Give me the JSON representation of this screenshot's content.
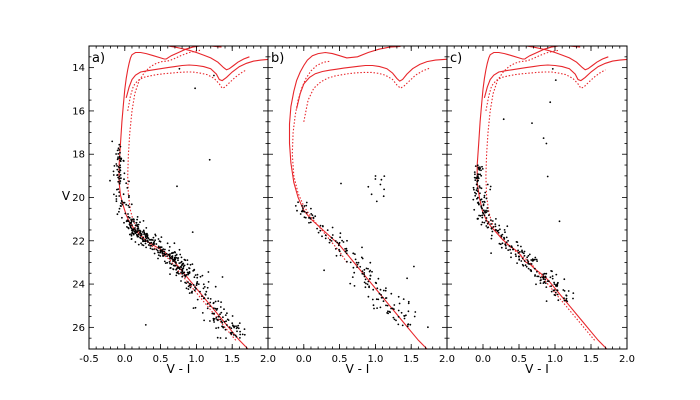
{
  "chart_data": [
    {
      "type": "scatter",
      "panel_label": "a)",
      "xlabel": "V - I",
      "ylabel": "V",
      "xlim": [
        -0.5,
        2.0
      ],
      "ylim": [
        27,
        13
      ],
      "y_inverted": true,
      "x_ticks": [
        -0.5,
        0.0,
        0.5,
        1.0,
        1.5,
        2.0
      ],
      "x_tick_labels": [
        "-0.5",
        "0.0",
        "0.5",
        "1.0",
        "1.5",
        "2.0"
      ],
      "y_ticks": [
        14,
        16,
        18,
        20,
        22,
        24,
        26
      ],
      "y_tick_labels": [
        "14",
        "16",
        "18",
        "20",
        "22",
        "24",
        "26"
      ],
      "scatter_color": "#000000",
      "isochrone_color": "#e8262b",
      "isochrones": [
        {
          "style": "solid",
          "x": [
            1.72,
            1.6,
            1.5,
            1.4,
            1.3,
            1.2,
            1.1,
            1.0,
            0.9,
            0.8,
            0.7,
            0.62,
            0.55,
            0.5,
            0.45,
            0.4,
            0.3,
            0.2,
            0.12,
            0.06,
            0.02,
            -0.02,
            -0.06,
            -0.08,
            -0.08,
            -0.06,
            -0.04,
            -0.02,
            0.0,
            0.02,
            0.04,
            0.06,
            0.08,
            0.1,
            0.15,
            0.22,
            0.3,
            0.4,
            0.5,
            0.55,
            0.58,
            0.6,
            0.65,
            0.75,
            0.85,
            0.95,
            1.05,
            1.2,
            1.35
          ],
          "y": [
            27.0,
            26.6,
            26.2,
            25.8,
            25.4,
            25.0,
            24.6,
            24.2,
            23.8,
            23.4,
            23.0,
            22.7,
            22.5,
            22.4,
            22.3,
            22.2,
            22.0,
            21.7,
            21.4,
            21.1,
            20.8,
            20.4,
            19.9,
            19.3,
            18.5,
            17.5,
            16.5,
            15.7,
            15.0,
            14.5,
            14.1,
            13.8,
            13.55,
            13.4,
            13.3,
            13.3,
            13.35,
            13.45,
            13.55,
            13.6,
            13.6,
            13.55,
            13.45,
            13.3,
            13.15,
            13.05,
            13.0,
            13.0,
            13.05
          ]
        },
        {
          "style": "dotted",
          "x": [
            1.55,
            1.45,
            1.35,
            1.25,
            1.15,
            1.05,
            0.95,
            0.85,
            0.75,
            0.68,
            0.62,
            0.56,
            0.5,
            0.4,
            0.3,
            0.2,
            0.12,
            0.08,
            0.05,
            0.04,
            0.05,
            0.07,
            0.1,
            0.14,
            0.2,
            0.28,
            0.36,
            0.44,
            0.52,
            0.58,
            0.62,
            0.68,
            0.78,
            0.9,
            1.05
          ],
          "y": [
            26.6,
            26.2,
            25.8,
            25.4,
            25.0,
            24.6,
            24.2,
            23.8,
            23.4,
            23.1,
            22.85,
            22.7,
            22.55,
            22.3,
            22.0,
            21.6,
            21.1,
            20.6,
            19.9,
            19.0,
            18.0,
            17.0,
            16.0,
            15.2,
            14.6,
            14.2,
            13.95,
            13.8,
            13.72,
            13.7,
            13.68,
            13.6,
            13.45,
            13.3,
            13.2
          ]
        },
        {
          "style": "solid",
          "x": [
            0.02,
            0.06,
            0.1,
            0.15,
            0.22,
            0.3,
            0.4,
            0.5,
            0.6,
            0.7,
            0.8,
            0.9,
            1.0,
            1.1,
            1.2,
            1.28,
            1.32,
            1.36,
            1.42,
            1.5,
            1.6,
            1.7,
            1.8,
            1.9,
            2.0
          ],
          "y": [
            15.4,
            14.9,
            14.55,
            14.35,
            14.2,
            14.15,
            14.1,
            14.05,
            14.0,
            13.95,
            13.9,
            13.88,
            13.9,
            13.95,
            14.05,
            14.3,
            14.55,
            14.6,
            14.45,
            14.2,
            13.95,
            13.8,
            13.7,
            13.65,
            13.62
          ]
        },
        {
          "style": "dotted",
          "x": [
            0.04,
            0.08,
            0.12,
            0.18,
            0.26,
            0.35,
            0.45,
            0.55,
            0.65,
            0.75,
            0.85,
            0.95,
            1.05,
            1.15,
            1.25,
            1.32,
            1.36,
            1.4,
            1.46,
            1.54,
            1.62,
            1.7
          ],
          "y": [
            16.0,
            15.3,
            14.85,
            14.6,
            14.45,
            14.38,
            14.32,
            14.28,
            14.25,
            14.22,
            14.2,
            14.2,
            14.25,
            14.32,
            14.5,
            14.75,
            14.95,
            14.9,
            14.7,
            14.45,
            14.25,
            14.1
          ]
        },
        {
          "style": "solid",
          "x": [
            0.6,
            0.7,
            0.8,
            0.9,
            1.0,
            1.1,
            1.2,
            1.3,
            1.38,
            1.42,
            1.46,
            1.52,
            1.58,
            1.66,
            1.74
          ],
          "y": [
            13.0,
            13.05,
            13.12,
            13.2,
            13.3,
            13.42,
            13.55,
            13.75,
            14.0,
            14.1,
            14.05,
            13.9,
            13.75,
            13.6,
            13.5
          ]
        }
      ],
      "points_seed": 11,
      "points_count": 520
    },
    {
      "type": "scatter",
      "panel_label": "b)",
      "xlabel": "V - I",
      "ylabel": "",
      "xlim": [
        -0.5,
        2.0
      ],
      "ylim": [
        27,
        13
      ],
      "y_inverted": true,
      "x_ticks": [
        -0.5,
        0.0,
        0.5,
        1.0,
        1.5,
        2.0
      ],
      "x_tick_labels": [
        "",
        "0.0",
        "0.5",
        "1.0",
        "1.5",
        "2.0"
      ],
      "scatter_color": "#000000",
      "isochrone_color": "#e8262b",
      "isochrones": [
        {
          "style": "solid",
          "x": [
            1.72,
            1.6,
            1.5,
            1.4,
            1.3,
            1.2,
            1.1,
            1.0,
            0.9,
            0.8,
            0.7,
            0.6,
            0.5,
            0.4,
            0.3,
            0.2,
            0.1,
            0.0,
            -0.08,
            -0.14,
            -0.18,
            -0.2,
            -0.2,
            -0.18,
            -0.14,
            -0.1,
            -0.05,
            0.0,
            0.05,
            0.12,
            0.2,
            0.3,
            0.4,
            0.5,
            0.6,
            0.75,
            0.9,
            1.05,
            1.2,
            1.35
          ],
          "y": [
            27.0,
            26.6,
            26.2,
            25.8,
            25.4,
            25.0,
            24.6,
            24.2,
            23.8,
            23.4,
            23.0,
            22.6,
            22.2,
            21.9,
            21.6,
            21.3,
            21.0,
            20.6,
            20.0,
            19.3,
            18.4,
            17.5,
            16.6,
            15.8,
            15.1,
            14.6,
            14.2,
            13.9,
            13.65,
            13.45,
            13.35,
            13.3,
            13.35,
            13.45,
            13.55,
            13.5,
            13.3,
            13.15,
            13.05,
            13.02
          ]
        },
        {
          "style": "dotted",
          "x": [
            0.6,
            0.5,
            0.4,
            0.3,
            0.2,
            0.1,
            0.0,
            -0.08,
            -0.14,
            -0.16,
            -0.15,
            -0.12,
            -0.08,
            -0.03,
            0.03,
            0.1,
            0.18,
            0.28,
            0.38
          ],
          "y": [
            23.0,
            22.5,
            22.1,
            21.7,
            21.3,
            20.9,
            20.4,
            19.8,
            19.0,
            18.0,
            17.0,
            16.2,
            15.5,
            14.95,
            14.5,
            14.15,
            13.9,
            13.75,
            13.7
          ]
        },
        {
          "style": "solid",
          "x": [
            -0.1,
            -0.05,
            0.0,
            0.08,
            0.16,
            0.26,
            0.36,
            0.46,
            0.56,
            0.66,
            0.76,
            0.86,
            0.96,
            1.06,
            1.16,
            1.24,
            1.3,
            1.34,
            1.38,
            1.44,
            1.52,
            1.62,
            1.72,
            1.84,
            1.96,
            2.0
          ],
          "y": [
            15.9,
            15.2,
            14.75,
            14.45,
            14.28,
            14.18,
            14.12,
            14.07,
            14.02,
            13.98,
            13.94,
            13.9,
            13.9,
            13.95,
            14.05,
            14.25,
            14.5,
            14.62,
            14.55,
            14.3,
            14.05,
            13.85,
            13.72,
            13.65,
            13.62,
            13.61
          ]
        },
        {
          "style": "dotted",
          "x": [
            0.0,
            0.06,
            0.14,
            0.24,
            0.34,
            0.44,
            0.54,
            0.64,
            0.74,
            0.84,
            0.94,
            1.04,
            1.14,
            1.24,
            1.3,
            1.35,
            1.4,
            1.48,
            1.56,
            1.66,
            1.76
          ],
          "y": [
            16.5,
            15.5,
            14.95,
            14.65,
            14.48,
            14.38,
            14.32,
            14.27,
            14.24,
            14.22,
            14.22,
            14.26,
            14.35,
            14.55,
            14.8,
            14.95,
            14.85,
            14.6,
            14.35,
            14.15,
            14.02
          ]
        }
      ],
      "points_seed": 23,
      "points_count": 170
    },
    {
      "type": "scatter",
      "panel_label": "c)",
      "xlabel": "V - I",
      "ylabel": "",
      "xlim": [
        -0.5,
        2.0
      ],
      "ylim": [
        27,
        13
      ],
      "y_inverted": true,
      "x_ticks": [
        -0.5,
        0.0,
        0.5,
        1.0,
        1.5,
        2.0
      ],
      "x_tick_labels": [
        "",
        "0.0",
        "0.5",
        "1.0",
        "1.5",
        "2.0"
      ],
      "scatter_color": "#000000",
      "isochrone_color": "#e8262b",
      "isochrones": [
        {
          "style": "solid",
          "x": [
            1.72,
            1.6,
            1.5,
            1.4,
            1.3,
            1.2,
            1.1,
            1.0,
            0.9,
            0.8,
            0.72,
            0.66,
            0.6,
            0.56,
            0.52,
            0.48,
            0.42,
            0.34,
            0.26,
            0.18,
            0.1,
            0.04,
            -0.01,
            -0.05,
            -0.08,
            -0.08,
            -0.06,
            -0.04,
            -0.02,
            0.0,
            0.02,
            0.04,
            0.06,
            0.08,
            0.1,
            0.15,
            0.22,
            0.3,
            0.4,
            0.5,
            0.55,
            0.58,
            0.6,
            0.65,
            0.75,
            0.85,
            0.95,
            1.05,
            1.2,
            1.35
          ],
          "y": [
            27.0,
            26.6,
            26.2,
            25.8,
            25.4,
            25.0,
            24.6,
            24.2,
            23.8,
            23.5,
            23.3,
            23.1,
            23.0,
            22.85,
            22.65,
            22.5,
            22.35,
            22.15,
            21.9,
            21.6,
            21.3,
            21.0,
            20.6,
            20.0,
            19.3,
            18.5,
            17.5,
            16.5,
            15.7,
            15.0,
            14.5,
            14.1,
            13.8,
            13.55,
            13.4,
            13.3,
            13.3,
            13.35,
            13.45,
            13.55,
            13.6,
            13.6,
            13.55,
            13.45,
            13.3,
            13.15,
            13.05,
            13.0,
            13.0,
            13.05
          ]
        },
        {
          "style": "dotted",
          "x": [
            1.55,
            1.45,
            1.35,
            1.25,
            1.15,
            1.05,
            0.95,
            0.85,
            0.75,
            0.68,
            0.62,
            0.56,
            0.5,
            0.4,
            0.3,
            0.2,
            0.12,
            0.08,
            0.05,
            0.04,
            0.05,
            0.07,
            0.1,
            0.14,
            0.2,
            0.28,
            0.36,
            0.44,
            0.52,
            0.58,
            0.62,
            0.68,
            0.78,
            0.9,
            1.05
          ],
          "y": [
            26.6,
            26.2,
            25.8,
            25.4,
            25.0,
            24.6,
            24.2,
            23.8,
            23.4,
            23.1,
            22.9,
            22.75,
            22.6,
            22.35,
            22.05,
            21.65,
            21.15,
            20.65,
            19.95,
            19.0,
            18.0,
            17.0,
            16.0,
            15.2,
            14.6,
            14.2,
            13.95,
            13.8,
            13.72,
            13.7,
            13.68,
            13.6,
            13.45,
            13.3,
            13.2
          ]
        },
        {
          "style": "solid",
          "x": [
            0.02,
            0.06,
            0.1,
            0.15,
            0.22,
            0.3,
            0.4,
            0.5,
            0.6,
            0.7,
            0.8,
            0.9,
            1.0,
            1.1,
            1.2,
            1.28,
            1.32,
            1.36,
            1.42,
            1.5,
            1.6,
            1.7,
            1.8,
            1.9,
            2.0
          ],
          "y": [
            15.4,
            14.9,
            14.55,
            14.35,
            14.2,
            14.15,
            14.1,
            14.05,
            14.0,
            13.95,
            13.9,
            13.88,
            13.9,
            13.95,
            14.05,
            14.3,
            14.55,
            14.6,
            14.45,
            14.2,
            13.95,
            13.8,
            13.7,
            13.65,
            13.62
          ]
        },
        {
          "style": "dotted",
          "x": [
            0.04,
            0.08,
            0.12,
            0.18,
            0.26,
            0.35,
            0.45,
            0.55,
            0.65,
            0.75,
            0.85,
            0.95,
            1.05,
            1.15,
            1.25,
            1.32,
            1.36,
            1.4,
            1.46,
            1.54,
            1.62,
            1.7
          ],
          "y": [
            16.0,
            15.3,
            14.85,
            14.6,
            14.45,
            14.38,
            14.32,
            14.28,
            14.25,
            14.22,
            14.2,
            14.2,
            14.25,
            14.32,
            14.5,
            14.75,
            14.95,
            14.9,
            14.7,
            14.45,
            14.25,
            14.1
          ]
        },
        {
          "style": "solid",
          "x": [
            0.6,
            0.7,
            0.8,
            0.9,
            1.0,
            1.1,
            1.2,
            1.3,
            1.38,
            1.42,
            1.46,
            1.52,
            1.58,
            1.66,
            1.74
          ],
          "y": [
            13.0,
            13.05,
            13.12,
            13.2,
            13.3,
            13.42,
            13.55,
            13.75,
            14.0,
            14.1,
            14.05,
            13.9,
            13.75,
            13.6,
            13.5
          ]
        }
      ],
      "points_seed": 37,
      "points_count": 300
    }
  ]
}
